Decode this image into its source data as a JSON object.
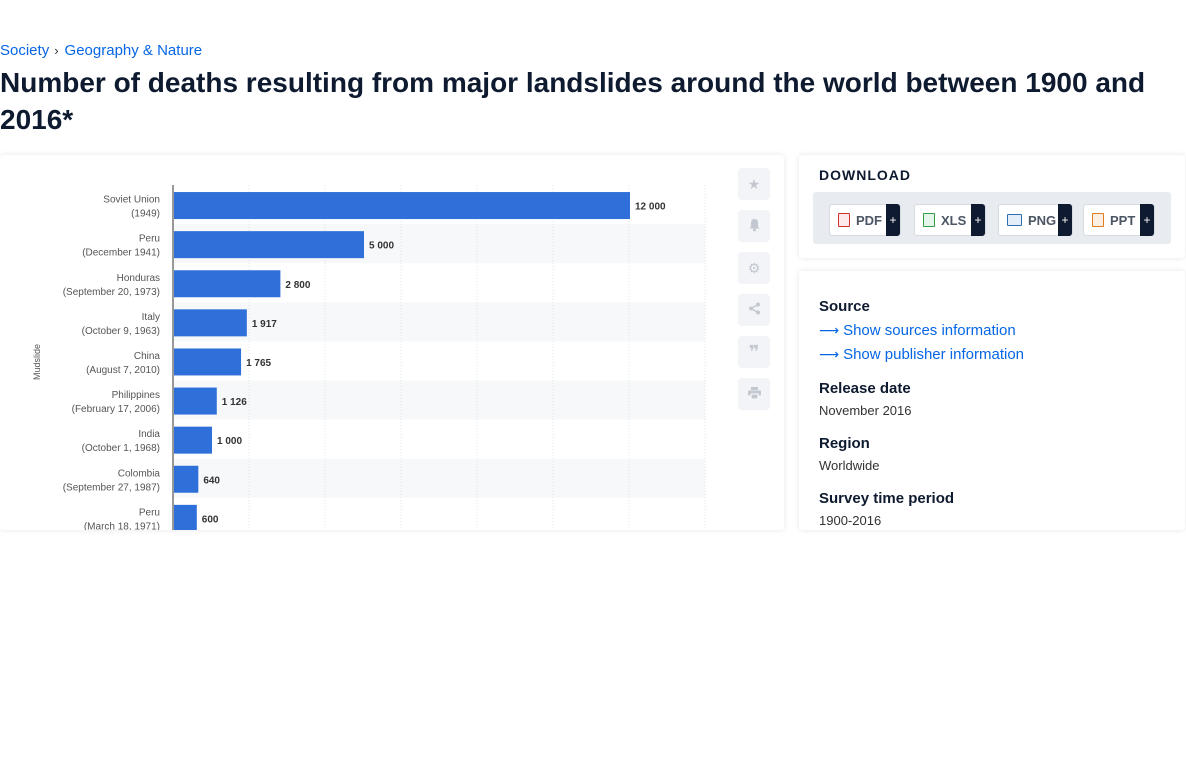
{
  "breadcrumb": {
    "items": [
      "Society",
      "Geography & Nature"
    ],
    "separator": "›"
  },
  "page_title": "Number of deaths resulting from major landslides around the world between 1900 and 2016*",
  "toolbar": {
    "icons": [
      "star-icon",
      "bell-icon",
      "gear-icon",
      "share-icon",
      "quote-icon",
      "print-icon"
    ]
  },
  "download": {
    "title": "DOWNLOAD",
    "buttons": [
      {
        "label": "PDF",
        "plus": "+",
        "icon": "pdf-file-icon",
        "color": "#d32f2f"
      },
      {
        "label": "XLS",
        "plus": "+",
        "icon": "xls-file-icon",
        "color": "#2e9e44"
      },
      {
        "label": "PNG",
        "plus": "+",
        "icon": "png-file-icon",
        "color": "#2a6fb0"
      },
      {
        "label": "PPT",
        "plus": "+",
        "icon": "ppt-file-icon",
        "color": "#e07b1f"
      }
    ]
  },
  "info": {
    "source_heading": "Source",
    "show_sources": "Show sources information",
    "show_publisher": "Show publisher information",
    "release_heading": "Release date",
    "release_value": "November 2016",
    "region_heading": "Region",
    "region_value": "Worldwide",
    "period_heading": "Survey time period",
    "period_value": "1900-2016"
  },
  "colors": {
    "bar": "#2f6fd9",
    "accent": "#0666e5",
    "title": "#0e1a2f"
  },
  "chart_data": {
    "type": "bar",
    "orientation": "horizontal",
    "categories": [
      [
        "Soviet Union",
        "(1949)"
      ],
      [
        "Peru",
        "(December 1941)"
      ],
      [
        "Honduras",
        "(September 20, 1973)"
      ],
      [
        "Italy",
        "(October 9, 1963)"
      ],
      [
        "China",
        "(August 7, 2010)"
      ],
      [
        "Philippines",
        "(February 17, 2006)"
      ],
      [
        "India",
        "(October 1, 1968)"
      ],
      [
        "Colombia",
        "(September 27, 1987)"
      ],
      [
        "Peru",
        "(March 18, 1971)"
      ]
    ],
    "values": [
      12000,
      5000,
      2800,
      1917,
      1765,
      1126,
      1000,
      640,
      600
    ],
    "value_labels": [
      "12 000",
      "5 000",
      "2 800",
      "1 917",
      "1 765",
      "1 126",
      "1 000",
      "640",
      "600"
    ],
    "group_label": "Mudslide",
    "xlim": [
      0,
      14000
    ],
    "grid": true
  }
}
